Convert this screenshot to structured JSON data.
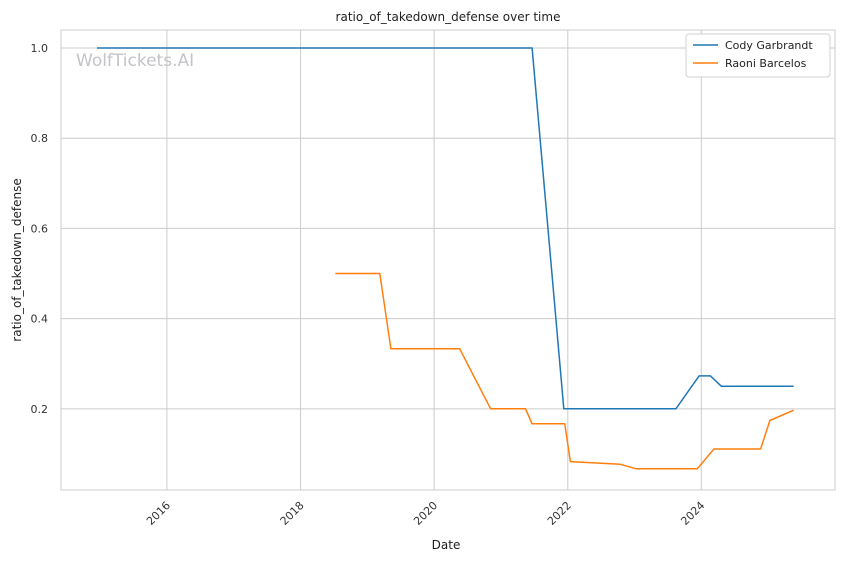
{
  "watermark": "WolfTickets.AI",
  "chart_data": {
    "type": "line",
    "title": "ratio_of_takedown_defense over time",
    "xlabel": "Date",
    "ylabel": "ratio_of_takedown_defense",
    "x_ticks": [
      "2016",
      "2018",
      "2020",
      "2022",
      "2024"
    ],
    "y_ticks": [
      "0.2",
      "0.4",
      "0.6",
      "0.8",
      "1.0"
    ],
    "xlim": [
      "2014-06-01",
      "2026-01-01"
    ],
    "ylim": [
      0.02,
      1.04
    ],
    "grid": true,
    "legend_position": "top-right",
    "colors": {
      "Cody Garbrandt": "#1f77b4",
      "Raoni Barcelos": "#ff7f0e"
    },
    "series": [
      {
        "name": "Cody Garbrandt",
        "points": [
          [
            "2014-12-15",
            1.0
          ],
          [
            "2021-06-20",
            1.0
          ],
          [
            "2021-12-10",
            0.2
          ],
          [
            "2023-08-15",
            0.2
          ],
          [
            "2023-12-20",
            0.273
          ],
          [
            "2024-02-20",
            0.273
          ],
          [
            "2024-04-20",
            0.25
          ],
          [
            "2025-05-20",
            0.25
          ]
        ]
      },
      {
        "name": "Raoni Barcelos",
        "points": [
          [
            "2018-07-10",
            0.5
          ],
          [
            "2019-03-10",
            0.5
          ],
          [
            "2019-05-10",
            0.333
          ],
          [
            "2020-05-20",
            0.333
          ],
          [
            "2020-11-05",
            0.2
          ],
          [
            "2021-05-15",
            0.2
          ],
          [
            "2021-06-20",
            0.167
          ],
          [
            "2021-12-15",
            0.167
          ],
          [
            "2022-01-15",
            0.083
          ],
          [
            "2022-10-15",
            0.077
          ],
          [
            "2023-01-10",
            0.067
          ],
          [
            "2023-12-10",
            0.067
          ],
          [
            "2024-03-10",
            0.111
          ],
          [
            "2024-11-20",
            0.111
          ],
          [
            "2025-01-10",
            0.174
          ],
          [
            "2025-05-20",
            0.197
          ]
        ]
      }
    ]
  }
}
